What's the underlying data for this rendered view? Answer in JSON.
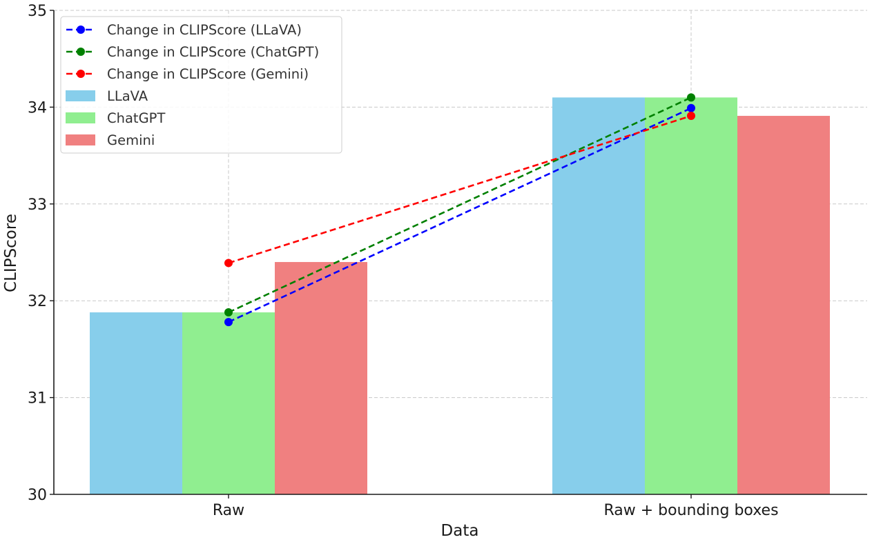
{
  "chart_data": {
    "type": "bar",
    "title": "",
    "xlabel": "Data",
    "ylabel": "CLIPScore",
    "ylim": [
      30,
      35
    ],
    "yticks": [
      30,
      31,
      32,
      33,
      34,
      35
    ],
    "grid": true,
    "legend_position": "top-left",
    "categories": [
      "Raw",
      "Raw + bounding boxes"
    ],
    "series": [
      {
        "name": "LLaVA",
        "color": "#87ceeb",
        "values": [
          31.88,
          34.1
        ]
      },
      {
        "name": "ChatGPT",
        "color": "#90ee90",
        "values": [
          31.88,
          34.1
        ]
      },
      {
        "name": "Gemini",
        "color": "#f08080",
        "values": [
          32.4,
          33.91
        ]
      }
    ],
    "lines": [
      {
        "name": "Change in CLIPScore (LLaVA)",
        "color": "#0000ff",
        "style": "dashed",
        "marker": "circle",
        "values": [
          31.78,
          33.99
        ]
      },
      {
        "name": "Change in CLIPScore (ChatGPT)",
        "color": "#008000",
        "style": "dashed",
        "marker": "circle",
        "values": [
          31.88,
          34.1
        ]
      },
      {
        "name": "Change in CLIPScore (Gemini)",
        "color": "#ff0000",
        "style": "dashed",
        "marker": "circle",
        "values": [
          32.39,
          33.91
        ]
      }
    ]
  }
}
